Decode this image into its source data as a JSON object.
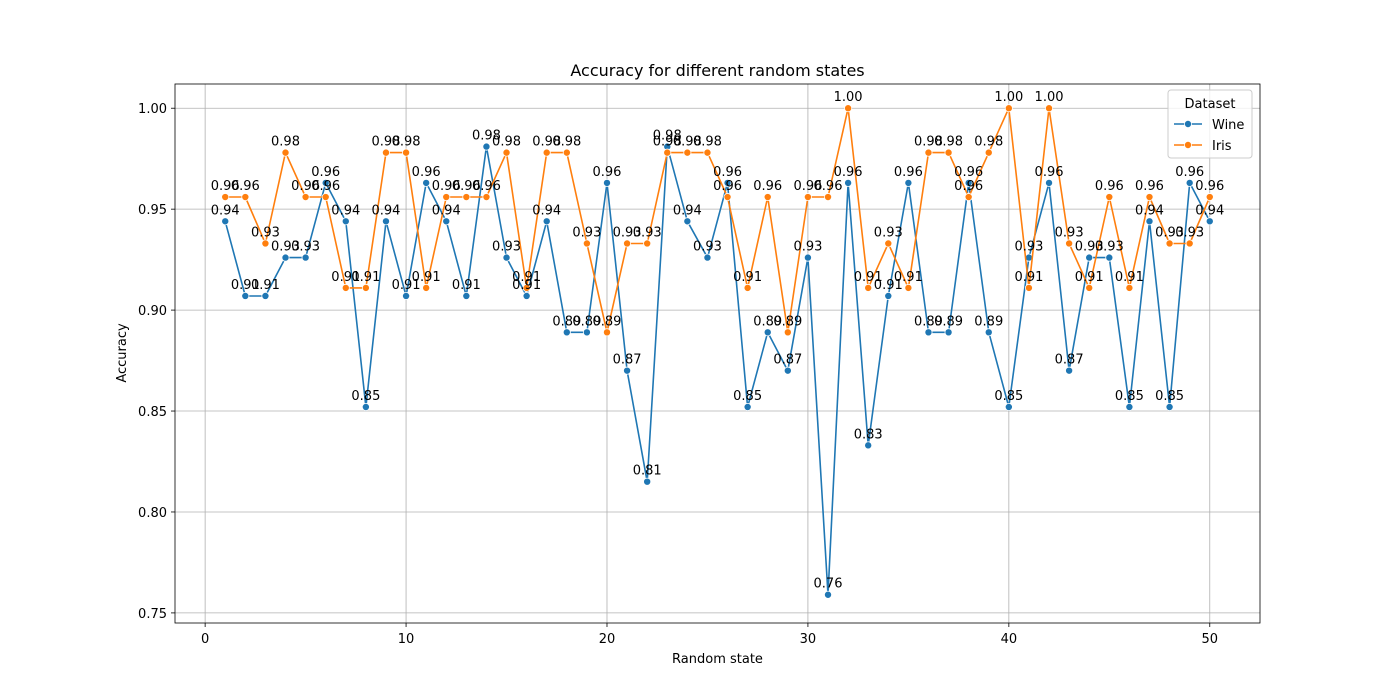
{
  "chart_data": {
    "type": "line",
    "title": "Accuracy for different random states",
    "xlabel": "Random state",
    "ylabel": "Accuracy",
    "xlim": [
      -1.5,
      52.5
    ],
    "ylim": [
      0.745,
      1.012
    ],
    "xticks": [
      0,
      10,
      20,
      30,
      40,
      50
    ],
    "yticks": [
      0.75,
      0.8,
      0.85,
      0.9,
      0.95,
      1.0
    ],
    "grid": true,
    "legend": {
      "title": "Dataset",
      "placement": "top-right"
    },
    "markers": true,
    "data_labels": true,
    "x": [
      1,
      2,
      3,
      4,
      5,
      6,
      7,
      8,
      9,
      10,
      11,
      12,
      13,
      14,
      15,
      16,
      17,
      18,
      19,
      20,
      21,
      22,
      23,
      24,
      25,
      26,
      27,
      28,
      29,
      30,
      31,
      32,
      33,
      34,
      35,
      36,
      37,
      38,
      39,
      40,
      41,
      42,
      43,
      44,
      45,
      46,
      47,
      48,
      49,
      50
    ],
    "series": [
      {
        "name": "Wine",
        "color": "#1f77b4",
        "values": [
          0.944,
          0.907,
          0.907,
          0.926,
          0.926,
          0.963,
          0.944,
          0.852,
          0.944,
          0.907,
          0.963,
          0.944,
          0.907,
          0.981,
          0.926,
          0.907,
          0.944,
          0.889,
          0.889,
          0.963,
          0.87,
          0.815,
          0.981,
          0.944,
          0.926,
          0.963,
          0.852,
          0.889,
          0.87,
          0.926,
          0.759,
          0.963,
          0.833,
          0.907,
          0.963,
          0.889,
          0.889,
          0.963,
          0.889,
          0.852,
          0.926,
          0.963,
          0.87,
          0.926,
          0.926,
          0.852,
          0.944,
          0.852,
          0.963,
          0.944
        ]
      },
      {
        "name": "Iris",
        "color": "#ff7f0e",
        "values": [
          0.956,
          0.956,
          0.933,
          0.978,
          0.956,
          0.956,
          0.911,
          0.911,
          0.978,
          0.978,
          0.911,
          0.956,
          0.956,
          0.956,
          0.978,
          0.911,
          0.978,
          0.978,
          0.933,
          0.889,
          0.933,
          0.933,
          0.978,
          0.978,
          0.978,
          0.956,
          0.911,
          0.956,
          0.889,
          0.956,
          0.956,
          1.0,
          0.911,
          0.933,
          0.911,
          0.978,
          0.978,
          0.956,
          0.978,
          1.0,
          0.911,
          1.0,
          0.933,
          0.911,
          0.956,
          0.911,
          0.956,
          0.933,
          0.933,
          0.956
        ]
      }
    ]
  }
}
